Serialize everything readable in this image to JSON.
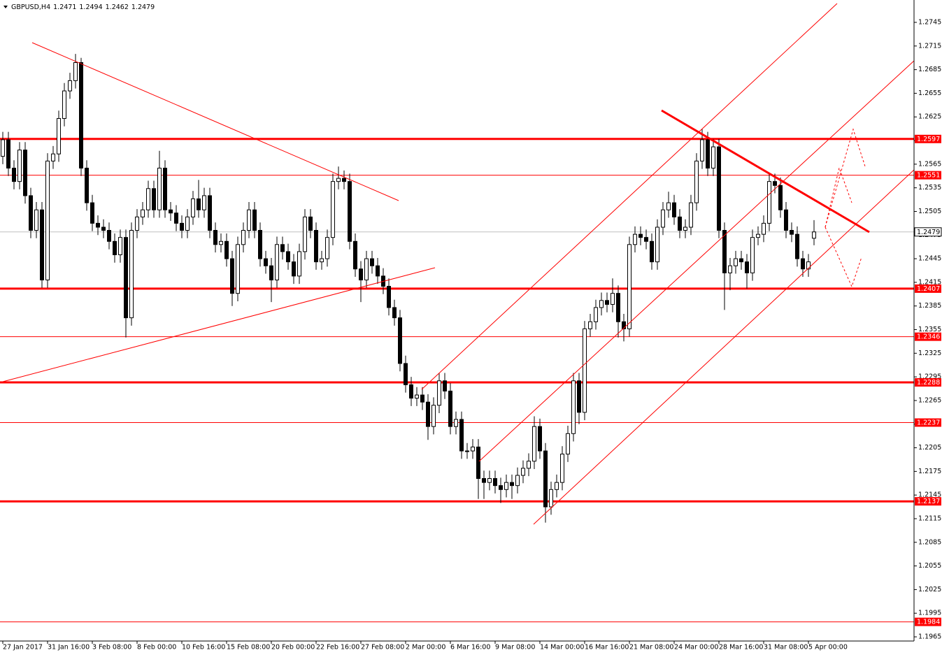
{
  "chart_data": {
    "type": "candlestick",
    "title": "GBPUSD,H4",
    "xlim": [
      -0.5,
      162.875
    ],
    "xticks": [
      {
        "value": 0,
        "label": "27 Jan 2017"
      },
      {
        "value": 8,
        "label": "31 Jan 16:00"
      },
      {
        "value": 16,
        "label": "3 Feb 08:00"
      },
      {
        "value": 24,
        "label": "8 Feb 00:00"
      },
      {
        "value": 32,
        "label": "10 Feb 16:00"
      },
      {
        "value": 40,
        "label": "15 Feb 08:00"
      },
      {
        "value": 48,
        "label": "20 Feb 00:00"
      },
      {
        "value": 56,
        "label": "22 Feb 16:00"
      },
      {
        "value": 64,
        "label": "27 Feb 08:00"
      },
      {
        "value": 72,
        "label": "2 Mar 00:00"
      },
      {
        "value": 80,
        "label": "6 Mar 16:00"
      },
      {
        "value": 88,
        "label": "9 Mar 08:00"
      },
      {
        "value": 96,
        "label": "14 Mar 00:00"
      },
      {
        "value": 104,
        "label": "16 Mar 16:00"
      },
      {
        "value": 112,
        "label": "21 Mar 08:00"
      },
      {
        "value": 120,
        "label": "24 Mar 00:00"
      },
      {
        "value": 128,
        "label": "28 Mar 16:00"
      },
      {
        "value": 136,
        "label": "31 Mar 08:00"
      },
      {
        "value": 144,
        "label": "5 Apr 00:00"
      }
    ],
    "ylim": [
      1.19597,
      1.27734
    ],
    "yticks": [
      1.1965,
      1.1995,
      1.2025,
      1.2055,
      1.2085,
      1.2115,
      1.2145,
      1.2175,
      1.2205,
      1.2235,
      1.2265,
      1.2295,
      1.2325,
      1.2355,
      1.2385,
      1.2415,
      1.2445,
      1.2475,
      1.2505,
      1.2535,
      1.2565,
      1.2595,
      1.2625,
      1.2655,
      1.2685,
      1.2715,
      1.2745
    ],
    "open": [
      1.2575,
      1.2596,
      1.256,
      1.2543,
      1.2583,
      1.2525,
      1.2481,
      1.2507,
      1.2418,
      1.2569,
      1.2578,
      1.2623,
      1.2658,
      1.2671,
      1.2694,
      1.256,
      1.2516,
      1.249,
      1.2485,
      1.2481,
      1.2467,
      1.245,
      1.2472,
      1.237,
      1.2481,
      1.2498,
      1.2507,
      1.2534,
      1.2507,
      1.256,
      1.2507,
      1.2503,
      1.249,
      1.2481,
      1.2498,
      1.2521,
      1.2507,
      1.2525,
      1.2481,
      1.2463,
      1.2467,
      1.2445,
      1.2401,
      1.2463,
      1.2481,
      1.2507,
      1.2481,
      1.2445,
      1.2436,
      1.2418,
      1.2463,
      1.2454,
      1.2441,
      1.2423,
      1.2454,
      1.2498,
      1.2481,
      1.2441,
      1.2445,
      1.2472,
      1.2543,
      1.2547,
      1.2543,
      1.2467,
      1.2432,
      1.2418,
      1.2445,
      1.2436,
      1.2423,
      1.241,
      1.2383,
      1.237,
      1.2312,
      1.2285,
      1.2268,
      1.2272,
      1.2263,
      1.2232,
      1.2259,
      1.229,
      1.2277,
      1.2232,
      1.2241,
      1.2201,
      1.2201,
      1.2206,
      1.2166,
      1.2161,
      1.2166,
      1.2157,
      1.2152,
      1.2161,
      1.2157,
      1.217,
      1.2179,
      1.2188,
      1.2232,
      1.2201,
      1.213,
      1.2152,
      1.2161,
      1.2197,
      1.2223,
      1.229,
      1.225,
      1.2356,
      1.2365,
      1.2383,
      1.2392,
      1.2387,
      1.2401,
      1.2365,
      1.2356,
      1.2463,
      1.2476,
      1.2472,
      1.2467,
      1.2441,
      1.2485,
      1.2507,
      1.2516,
      1.2498,
      1.2481,
      1.2485,
      1.2516,
      1.2569,
      1.2596,
      1.256,
      1.2587,
      1.2481,
      1.2427,
      1.2436,
      1.2445,
      1.2441,
      1.2427,
      1.2472,
      1.2476,
      1.249,
      1.2543,
      1.2538,
      1.2507,
      1.2481,
      1.2476,
      1.2445,
      1.2432,
      1.2471
    ],
    "high": [
      1.2606,
      1.2606,
      1.257,
      1.2593,
      1.2593,
      1.2535,
      1.2517,
      1.2517,
      1.2579,
      1.2588,
      1.2633,
      1.2668,
      1.2681,
      1.2705,
      1.27,
      1.257,
      1.2526,
      1.25,
      1.2495,
      1.2491,
      1.2477,
      1.2482,
      1.2482,
      1.2491,
      1.2508,
      1.2517,
      1.2544,
      1.2544,
      1.2582,
      1.257,
      1.2517,
      1.2513,
      1.25,
      1.2508,
      1.2531,
      1.2545,
      1.2535,
      1.2535,
      1.2491,
      1.2477,
      1.2477,
      1.2455,
      1.2473,
      1.2491,
      1.2517,
      1.2517,
      1.2491,
      1.2455,
      1.2446,
      1.2473,
      1.2473,
      1.2464,
      1.2451,
      1.2464,
      1.2508,
      1.2508,
      1.2491,
      1.2455,
      1.2482,
      1.2553,
      1.2562,
      1.2557,
      1.2553,
      1.2477,
      1.2442,
      1.2455,
      1.2455,
      1.2446,
      1.2433,
      1.242,
      1.2393,
      1.238,
      1.2322,
      1.2295,
      1.2282,
      1.2282,
      1.2273,
      1.2269,
      1.23,
      1.23,
      1.2287,
      1.2251,
      1.2251,
      1.2211,
      1.2216,
      1.2216,
      1.2176,
      1.2176,
      1.2176,
      1.2167,
      1.2171,
      1.2171,
      1.218,
      1.2189,
      1.2198,
      1.2245,
      1.2242,
      1.2211,
      1.2162,
      1.2171,
      1.2207,
      1.2233,
      1.23,
      1.23,
      1.2366,
      1.2375,
      1.2393,
      1.2402,
      1.2402,
      1.242,
      1.2411,
      1.2375,
      1.2473,
      1.2486,
      1.2486,
      1.2482,
      1.2477,
      1.2495,
      1.2517,
      1.253,
      1.2526,
      1.2508,
      1.2495,
      1.2526,
      1.2579,
      1.261,
      1.2606,
      1.2597,
      1.2597,
      1.2491,
      1.2446,
      1.2455,
      1.2455,
      1.2451,
      1.2482,
      1.2486,
      1.25,
      1.2553,
      1.2553,
      1.2548,
      1.2517,
      1.2491,
      1.2486,
      1.2455,
      1.2451,
      1.2494
    ],
    "low": [
      1.2565,
      1.255,
      1.2533,
      1.2533,
      1.2515,
      1.2471,
      1.2471,
      1.2408,
      1.2408,
      1.2559,
      1.2568,
      1.2613,
      1.2648,
      1.2661,
      1.255,
      1.2506,
      1.248,
      1.2475,
      1.2471,
      1.2457,
      1.244,
      1.244,
      1.2345,
      1.236,
      1.2471,
      1.2488,
      1.2497,
      1.2497,
      1.2497,
      1.2497,
      1.2493,
      1.248,
      1.2471,
      1.2471,
      1.2488,
      1.2497,
      1.2497,
      1.2471,
      1.2453,
      1.2453,
      1.2435,
      1.2385,
      1.2391,
      1.2453,
      1.2471,
      1.2471,
      1.2435,
      1.2426,
      1.239,
      1.2408,
      1.2444,
      1.2431,
      1.2413,
      1.2413,
      1.2444,
      1.2471,
      1.2431,
      1.2431,
      1.2435,
      1.2462,
      1.2533,
      1.2533,
      1.2457,
      1.2422,
      1.239,
      1.2408,
      1.2426,
      1.2413,
      1.24,
      1.2373,
      1.236,
      1.2302,
      1.2275,
      1.2258,
      1.2258,
      1.2253,
      1.2215,
      1.2222,
      1.2249,
      1.2267,
      1.2222,
      1.2222,
      1.2191,
      1.2191,
      1.2191,
      1.214,
      1.214,
      1.2151,
      1.2147,
      1.2135,
      1.2142,
      1.214,
      1.2147,
      1.216,
      1.2169,
      1.2178,
      1.2191,
      1.211,
      1.212,
      1.2142,
      1.2151,
      1.2187,
      1.2213,
      1.2235,
      1.224,
      1.2346,
      1.2355,
      1.2373,
      1.2377,
      1.2377,
      1.2345,
      1.234,
      1.2346,
      1.2453,
      1.2462,
      1.2457,
      1.2431,
      1.2431,
      1.2475,
      1.2497,
      1.2488,
      1.2471,
      1.2471,
      1.2475,
      1.2506,
      1.2559,
      1.255,
      1.255,
      1.2471,
      1.238,
      1.2405,
      1.2426,
      1.2431,
      1.2407,
      1.2417,
      1.2462,
      1.2466,
      1.248,
      1.2528,
      1.2497,
      1.2471,
      1.2466,
      1.2435,
      1.2422,
      1.2422,
      1.2462
    ],
    "close": [
      1.2596,
      1.256,
      1.2543,
      1.2583,
      1.2525,
      1.2481,
      1.2507,
      1.2418,
      1.2569,
      1.2578,
      1.2623,
      1.2658,
      1.2671,
      1.2694,
      1.256,
      1.2516,
      1.249,
      1.2485,
      1.2481,
      1.2467,
      1.245,
      1.2472,
      1.237,
      1.2481,
      1.2498,
      1.2507,
      1.2534,
      1.2507,
      1.256,
      1.2507,
      1.2503,
      1.249,
      1.2481,
      1.2498,
      1.2521,
      1.2507,
      1.2525,
      1.2481,
      1.2463,
      1.2467,
      1.2445,
      1.2401,
      1.2463,
      1.2481,
      1.2507,
      1.2481,
      1.2445,
      1.2436,
      1.2418,
      1.2463,
      1.2454,
      1.2441,
      1.2423,
      1.2454,
      1.2498,
      1.2481,
      1.2441,
      1.2445,
      1.2472,
      1.2543,
      1.2547,
      1.2543,
      1.2467,
      1.2432,
      1.2418,
      1.2445,
      1.2436,
      1.2423,
      1.241,
      1.2383,
      1.237,
      1.2312,
      1.2285,
      1.2268,
      1.2272,
      1.2263,
      1.2232,
      1.2259,
      1.229,
      1.2277,
      1.2232,
      1.2241,
      1.2201,
      1.2201,
      1.2206,
      1.2166,
      1.2161,
      1.2166,
      1.2157,
      1.2152,
      1.2161,
      1.2157,
      1.217,
      1.2179,
      1.2188,
      1.2232,
      1.2201,
      1.213,
      1.2152,
      1.2161,
      1.2197,
      1.2223,
      1.229,
      1.225,
      1.2356,
      1.2365,
      1.2383,
      1.2392,
      1.2387,
      1.2401,
      1.2365,
      1.2356,
      1.2463,
      1.2476,
      1.2472,
      1.2467,
      1.2441,
      1.2485,
      1.2507,
      1.2516,
      1.2498,
      1.2481,
      1.2485,
      1.2516,
      1.2569,
      1.2596,
      1.256,
      1.2587,
      1.2481,
      1.2427,
      1.2436,
      1.2445,
      1.2441,
      1.2427,
      1.2472,
      1.2476,
      1.249,
      1.2543,
      1.2538,
      1.2507,
      1.2481,
      1.2476,
      1.2445,
      1.2432,
      1.2441,
      1.2479
    ],
    "levels_major": [
      1.2597,
      1.2407,
      1.2288,
      1.2137
    ],
    "levels_minor": [
      1.2551,
      1.2346,
      1.2237,
      1.1984
    ],
    "level_color": "#ff0000",
    "price_line_color": "#c0c0c0",
    "up_color": "#ffffff",
    "down_color": "#000000"
  }
}
